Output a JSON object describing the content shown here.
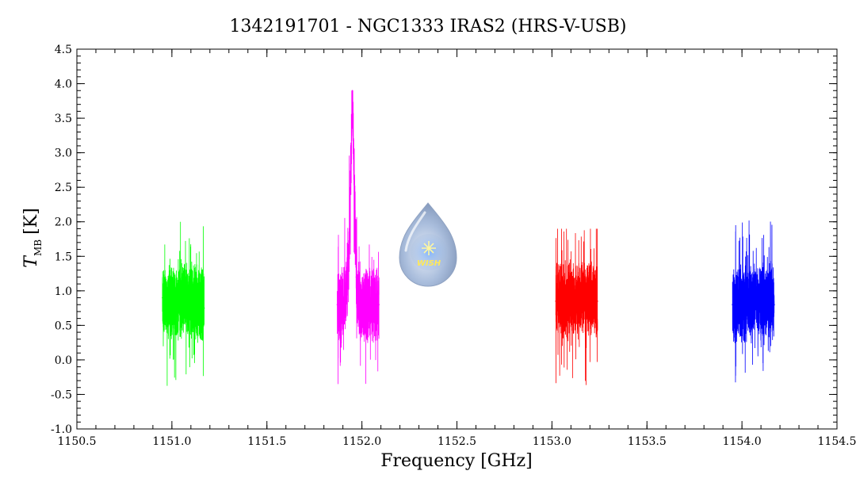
{
  "chart_data": {
    "type": "line",
    "title": "1342191701 - NGC1333 IRAS2 (HRS-V-USB)",
    "xlabel": "Frequency [GHz]",
    "ylabel_main": "T",
    "ylabel_sub": "MB",
    "ylabel_unit": "[K]",
    "xlim": [
      1150.5,
      1154.5
    ],
    "ylim": [
      -1.0,
      4.5
    ],
    "x_ticks": [
      "1150.5",
      "1151.0",
      "1151.5",
      "1152.0",
      "1152.5",
      "1153.0",
      "1153.5",
      "1154.0",
      "1154.5"
    ],
    "y_ticks": [
      "-1.0",
      "-0.5",
      "0.0",
      "0.5",
      "1.0",
      "1.5",
      "2.0",
      "2.5",
      "3.0",
      "3.5",
      "4.0",
      "4.5"
    ],
    "grid": false,
    "series": [
      {
        "color": "#00ff00",
        "x": [
          1150.95,
          1150.97,
          1150.99,
          1151.01,
          1151.03,
          1151.05,
          1151.07,
          1151.09,
          1151.11,
          1151.13,
          1151.15,
          1151.17
        ],
        "y": [
          0.9,
          0.8,
          0.85,
          0.9,
          0.8,
          0.85,
          0.95,
          0.8,
          0.9,
          0.85,
          0.8,
          0.75
        ],
        "noise_band": [
          -0.65,
          2.0
        ]
      },
      {
        "color": "#ff00ff",
        "x": [
          1151.87,
          1151.89,
          1151.91,
          1151.93,
          1151.95,
          1151.97,
          1151.99,
          1152.01,
          1152.03,
          1152.05,
          1152.07,
          1152.09
        ],
        "y": [
          0.8,
          0.75,
          0.9,
          1.3,
          3.9,
          1.2,
          0.7,
          0.85,
          0.8,
          0.85,
          0.8,
          0.8
        ],
        "noise_band": [
          -0.35,
          3.9
        ]
      },
      {
        "color": "#ff0000",
        "x": [
          1153.02,
          1153.04,
          1153.06,
          1153.08,
          1153.1,
          1153.12,
          1153.14,
          1153.16,
          1153.18,
          1153.2,
          1153.22,
          1153.24
        ],
        "y": [
          0.85,
          0.9,
          0.85,
          0.8,
          0.9,
          0.85,
          0.85,
          0.9,
          0.8,
          0.9,
          0.85,
          0.85
        ],
        "noise_band": [
          -0.75,
          1.9
        ]
      },
      {
        "color": "#0000ff",
        "x": [
          1153.95,
          1153.97,
          1153.99,
          1154.01,
          1154.03,
          1154.05,
          1154.07,
          1154.09,
          1154.11,
          1154.13,
          1154.15,
          1154.17
        ],
        "y": [
          0.8,
          0.75,
          0.85,
          0.8,
          0.85,
          0.8,
          0.9,
          0.85,
          0.8,
          0.85,
          0.9,
          0.8
        ],
        "noise_band": [
          -0.6,
          2.35
        ]
      }
    ]
  },
  "logo": {
    "text": "WISH",
    "icon": "wish-droplet-logo"
  }
}
